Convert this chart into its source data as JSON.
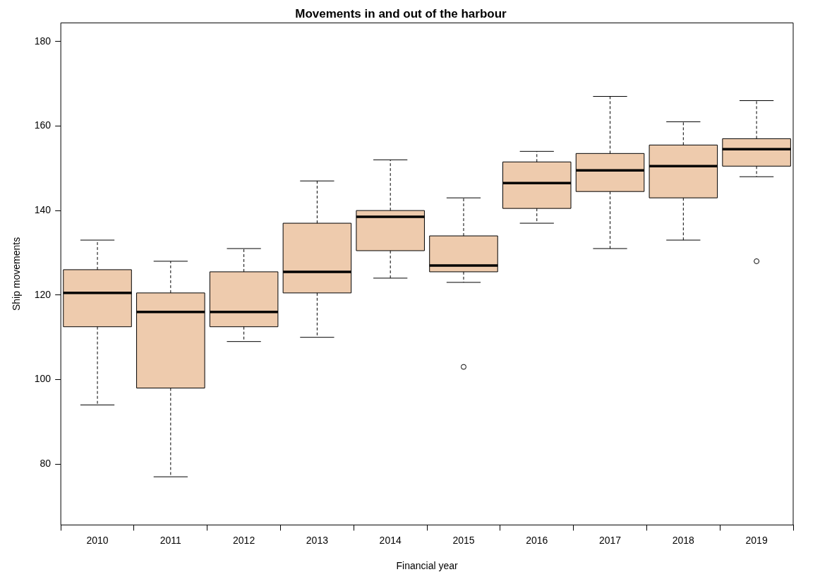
{
  "chart_data": {
    "type": "box",
    "title": "Movements in and out of the harbour",
    "xlabel": "Financial year",
    "ylabel": "Ship movements",
    "categories": [
      "2010",
      "2011",
      "2012",
      "2013",
      "2014",
      "2015",
      "2016",
      "2017",
      "2018",
      "2019"
    ],
    "color": "#eecbad",
    "boxes": [
      {
        "low": 94,
        "q1": 112.5,
        "median": 120.5,
        "q3": 126,
        "high": 133
      },
      {
        "low": 77,
        "q1": 98,
        "median": 116,
        "q3": 120.5,
        "high": 128
      },
      {
        "low": 109,
        "q1": 112.5,
        "median": 116,
        "q3": 125.5,
        "high": 131
      },
      {
        "low": 110,
        "q1": 120.5,
        "median": 125.5,
        "q3": 137,
        "high": 147
      },
      {
        "low": 124,
        "q1": 130.5,
        "median": 138.5,
        "q3": 140,
        "high": 152
      },
      {
        "low": 123,
        "q1": 125.5,
        "median": 127,
        "q3": 134,
        "high": 143,
        "outliers": [
          103
        ]
      },
      {
        "low": 137,
        "q1": 140.5,
        "median": 146.5,
        "q3": 151.5,
        "high": 154
      },
      {
        "low": 131,
        "q1": 144.5,
        "median": 149.5,
        "q3": 153.5,
        "high": 167
      },
      {
        "low": 133,
        "q1": 143,
        "median": 150.5,
        "q3": 155.5,
        "high": 161
      },
      {
        "low": 148,
        "q1": 150.5,
        "median": 154.5,
        "q3": 157,
        "high": 166,
        "outliers": [
          128
        ]
      }
    ],
    "ylim": [
      65.6,
      184.4
    ],
    "yticks": [
      80,
      100,
      120,
      140,
      160,
      180
    ],
    "grid": false,
    "legend": false
  }
}
